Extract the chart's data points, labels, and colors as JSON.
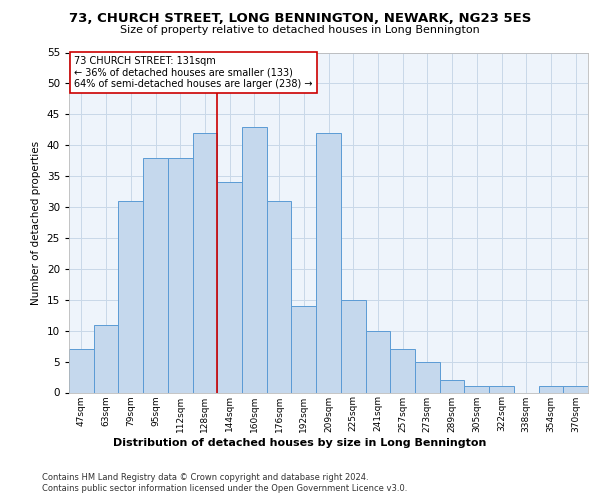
{
  "title_line1": "73, CHURCH STREET, LONG BENNINGTON, NEWARK, NG23 5ES",
  "title_line2": "Size of property relative to detached houses in Long Bennington",
  "xlabel": "Distribution of detached houses by size in Long Bennington",
  "ylabel": "Number of detached properties",
  "bar_categories": [
    "47sqm",
    "63sqm",
    "79sqm",
    "95sqm",
    "112sqm",
    "128sqm",
    "144sqm",
    "160sqm",
    "176sqm",
    "192sqm",
    "209sqm",
    "225sqm",
    "241sqm",
    "257sqm",
    "273sqm",
    "289sqm",
    "305sqm",
    "322sqm",
    "338sqm",
    "354sqm",
    "370sqm"
  ],
  "bar_values": [
    7,
    11,
    31,
    38,
    38,
    42,
    34,
    43,
    31,
    14,
    42,
    15,
    10,
    7,
    5,
    2,
    1,
    1,
    0,
    1,
    1
  ],
  "bar_color": "#c5d8ed",
  "bar_edgecolor": "#5b9bd5",
  "grid_color": "#c8d8e8",
  "bg_color": "#eef4fb",
  "vline_x_idx": 5,
  "vline_color": "#cc0000",
  "annotation_text": "73 CHURCH STREET: 131sqm\n← 36% of detached houses are smaller (133)\n64% of semi-detached houses are larger (238) →",
  "annotation_box_color": "#ffffff",
  "annotation_box_edgecolor": "#cc0000",
  "ylim": [
    0,
    55
  ],
  "yticks": [
    0,
    5,
    10,
    15,
    20,
    25,
    30,
    35,
    40,
    45,
    50,
    55
  ],
  "footer_line1": "Contains HM Land Registry data © Crown copyright and database right 2024.",
  "footer_line2": "Contains public sector information licensed under the Open Government Licence v3.0."
}
